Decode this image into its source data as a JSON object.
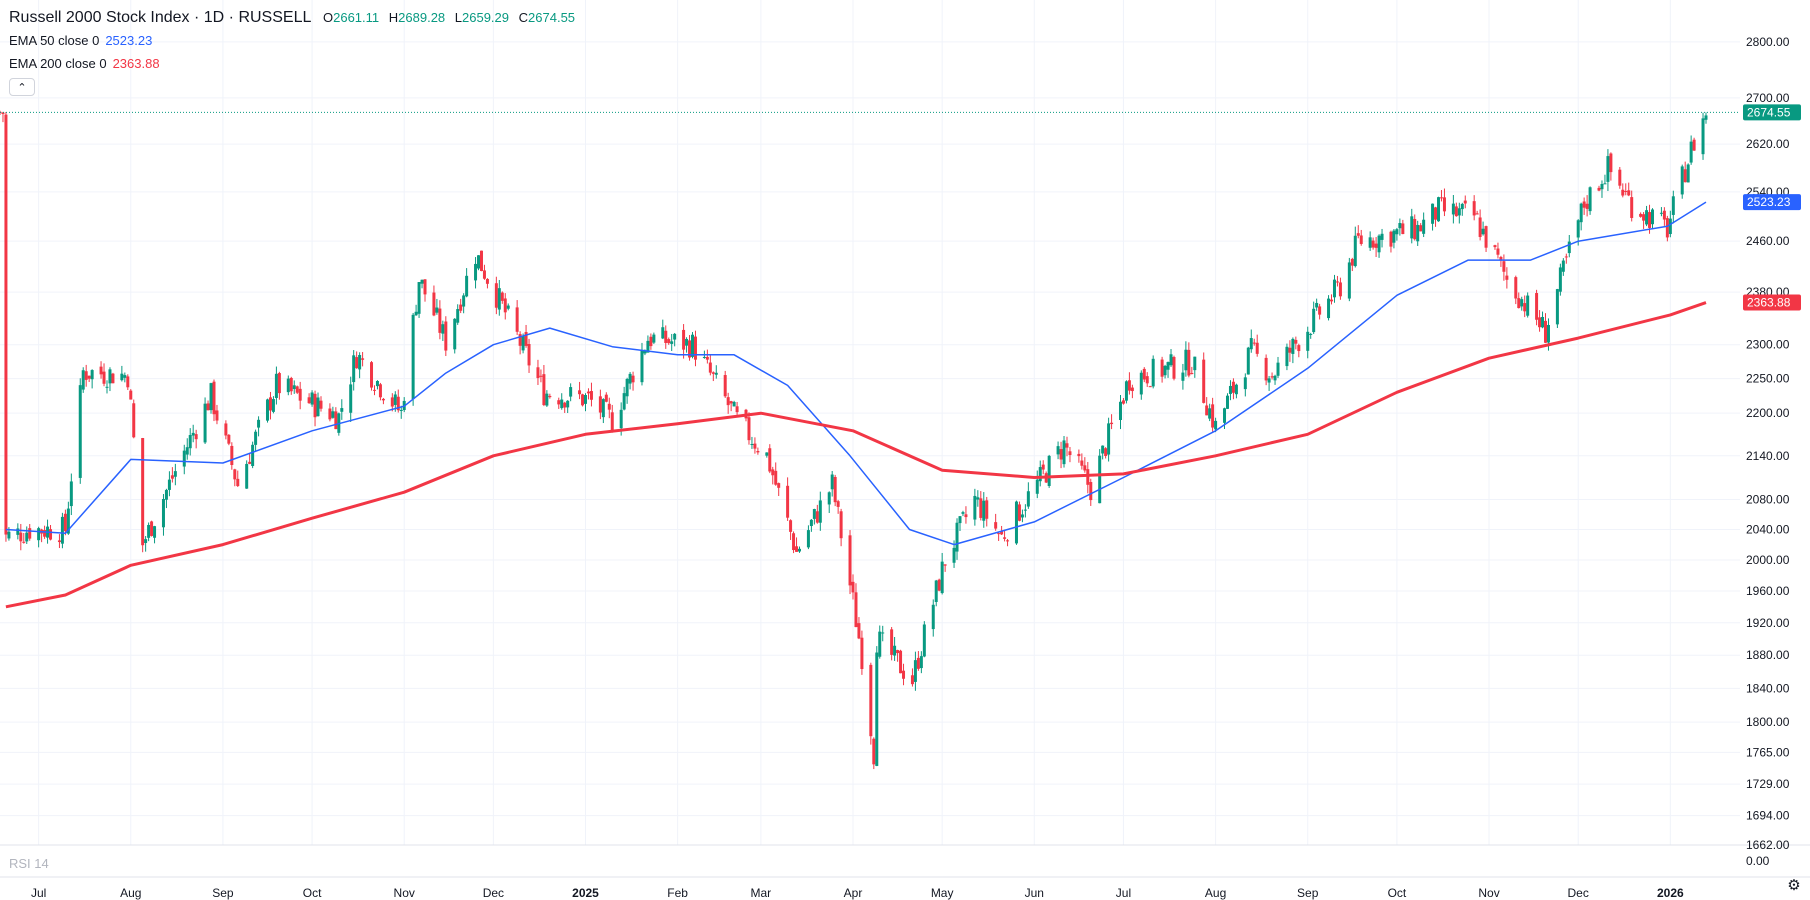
{
  "header": {
    "title": "Russell 2000 Stock Index · 1D · RUSSELL",
    "ohlc": [
      {
        "key": "O",
        "value": "2661.11"
      },
      {
        "key": "H",
        "value": "2689.28"
      },
      {
        "key": "L",
        "value": "2659.29"
      },
      {
        "key": "C",
        "value": "2674.55"
      }
    ],
    "ema50": {
      "label": "EMA 50 close 0",
      "value": "2523.23"
    },
    "ema200": {
      "label": "EMA 200 close 0",
      "value": "2363.88"
    }
  },
  "rsi": {
    "label": "RSI 14",
    "axis_value": "0.00"
  },
  "colors": {
    "up": "#089981",
    "down": "#f23645",
    "ema50": "#2962ff",
    "ema200": "#f23645",
    "grid": "#f0f3fa",
    "axis_text": "#131722"
  },
  "icons": {
    "collapse": "chevron-up-icon",
    "settings": "gear-icon"
  },
  "chart_data": {
    "type": "candlestick",
    "title": "Russell 2000 Stock Index · 1D · RUSSELL",
    "y_scale": "log",
    "ylim": [
      1662,
      2840
    ],
    "grid": true,
    "y_ticks": [
      "2800.00",
      "2700.00",
      "2620.00",
      "2540.00",
      "2460.00",
      "2380.00",
      "2300.00",
      "2250.00",
      "2200.00",
      "2140.00",
      "2080.00",
      "2040.00",
      "2000.00",
      "1960.00",
      "1920.00",
      "1880.00",
      "1840.00",
      "1800.00",
      "1765.00",
      "1729.00",
      "1694.00",
      "1662.00"
    ],
    "x_ticks": [
      {
        "label": "Jul",
        "date": "2024-07-01"
      },
      {
        "label": "Aug",
        "date": "2024-08-01"
      },
      {
        "label": "Sep",
        "date": "2024-09-01"
      },
      {
        "label": "Oct",
        "date": "2024-10-01"
      },
      {
        "label": "Nov",
        "date": "2024-11-01"
      },
      {
        "label": "Dec",
        "date": "2024-12-01"
      },
      {
        "label": "2025",
        "date": "2025-01-01"
      },
      {
        "label": "Feb",
        "date": "2025-02-01"
      },
      {
        "label": "Mar",
        "date": "2025-03-01"
      },
      {
        "label": "Apr",
        "date": "2025-04-01"
      },
      {
        "label": "May",
        "date": "2025-05-01"
      },
      {
        "label": "Jun",
        "date": "2025-06-01"
      },
      {
        "label": "Jul",
        "date": "2025-07-01"
      },
      {
        "label": "Aug",
        "date": "2025-08-01"
      },
      {
        "label": "Sep",
        "date": "2025-09-01"
      },
      {
        "label": "Oct",
        "date": "2025-10-01"
      },
      {
        "label": "Nov",
        "date": "2025-11-01"
      },
      {
        "label": "Dec",
        "date": "2025-12-01"
      },
      {
        "label": "2026",
        "date": "2026-01-01"
      }
    ],
    "last_price": {
      "value": 2674.55,
      "label": "2674.55"
    },
    "close_series": [
      {
        "date": "2024-06-20",
        "close": 2030
      },
      {
        "date": "2024-06-28",
        "close": 2040
      },
      {
        "date": "2024-07-10",
        "close": 2040
      },
      {
        "date": "2024-07-16",
        "close": 2260
      },
      {
        "date": "2024-07-31",
        "close": 2255
      },
      {
        "date": "2024-08-05",
        "close": 2020
      },
      {
        "date": "2024-08-15",
        "close": 2110
      },
      {
        "date": "2024-08-28",
        "close": 2225
      },
      {
        "date": "2024-09-06",
        "close": 2100
      },
      {
        "date": "2024-09-19",
        "close": 2240
      },
      {
        "date": "2024-10-10",
        "close": 2195
      },
      {
        "date": "2024-10-16",
        "close": 2285
      },
      {
        "date": "2024-10-31",
        "close": 2200
      },
      {
        "date": "2024-11-06",
        "close": 2400
      },
      {
        "date": "2024-11-15",
        "close": 2305
      },
      {
        "date": "2024-11-25",
        "close": 2440
      },
      {
        "date": "2024-12-18",
        "close": 2230
      },
      {
        "date": "2025-01-02",
        "close": 2220
      },
      {
        "date": "2025-01-10",
        "close": 2190
      },
      {
        "date": "2025-01-22",
        "close": 2310
      },
      {
        "date": "2025-02-06",
        "close": 2300
      },
      {
        "date": "2025-02-21",
        "close": 2190
      },
      {
        "date": "2025-03-03",
        "close": 2140
      },
      {
        "date": "2025-03-13",
        "close": 2010
      },
      {
        "date": "2025-03-25",
        "close": 2100
      },
      {
        "date": "2025-04-04",
        "close": 1880
      },
      {
        "date": "2025-04-08",
        "close": 1765
      },
      {
        "date": "2025-04-09",
        "close": 1900
      },
      {
        "date": "2025-04-21",
        "close": 1850
      },
      {
        "date": "2025-05-02",
        "close": 2000
      },
      {
        "date": "2025-05-12",
        "close": 2080
      },
      {
        "date": "2025-05-21",
        "close": 2030
      },
      {
        "date": "2025-06-11",
        "close": 2155
      },
      {
        "date": "2025-06-20",
        "close": 2095
      },
      {
        "date": "2025-07-03",
        "close": 2250
      },
      {
        "date": "2025-07-24",
        "close": 2275
      },
      {
        "date": "2025-08-01",
        "close": 2180
      },
      {
        "date": "2025-08-13",
        "close": 2290
      },
      {
        "date": "2025-08-20",
        "close": 2255
      },
      {
        "date": "2025-09-12",
        "close": 2390
      },
      {
        "date": "2025-09-18",
        "close": 2460
      },
      {
        "date": "2025-10-08",
        "close": 2480
      },
      {
        "date": "2025-10-15",
        "close": 2510
      },
      {
        "date": "2025-10-27",
        "close": 2500
      },
      {
        "date": "2025-11-07",
        "close": 2400
      },
      {
        "date": "2025-11-20",
        "close": 2320
      },
      {
        "date": "2025-12-03",
        "close": 2520
      },
      {
        "date": "2025-12-11",
        "close": 2580
      },
      {
        "date": "2025-12-19",
        "close": 2520
      },
      {
        "date": "2025-12-31",
        "close": 2480
      },
      {
        "date": "2026-01-08",
        "close": 2610
      },
      {
        "date": "2026-01-13",
        "close": 2674.55
      }
    ],
    "series": [
      {
        "name": "EMA 50 close 0",
        "color": "#2962ff",
        "last": 2523.23,
        "points": [
          {
            "date": "2024-06-20",
            "value": 2040
          },
          {
            "date": "2024-07-10",
            "value": 2035
          },
          {
            "date": "2024-08-01",
            "value": 2135
          },
          {
            "date": "2024-09-01",
            "value": 2130
          },
          {
            "date": "2024-10-01",
            "value": 2175
          },
          {
            "date": "2024-11-01",
            "value": 2210
          },
          {
            "date": "2024-11-15",
            "value": 2258
          },
          {
            "date": "2024-12-01",
            "value": 2300
          },
          {
            "date": "2024-12-20",
            "value": 2325
          },
          {
            "date": "2025-01-10",
            "value": 2297
          },
          {
            "date": "2025-02-01",
            "value": 2285
          },
          {
            "date": "2025-02-20",
            "value": 2285
          },
          {
            "date": "2025-03-10",
            "value": 2240
          },
          {
            "date": "2025-03-31",
            "value": 2140
          },
          {
            "date": "2025-04-20",
            "value": 2040
          },
          {
            "date": "2025-05-05",
            "value": 2020
          },
          {
            "date": "2025-06-01",
            "value": 2050
          },
          {
            "date": "2025-07-01",
            "value": 2110
          },
          {
            "date": "2025-08-01",
            "value": 2175
          },
          {
            "date": "2025-09-01",
            "value": 2265
          },
          {
            "date": "2025-10-01",
            "value": 2375
          },
          {
            "date": "2025-10-25",
            "value": 2430
          },
          {
            "date": "2025-11-15",
            "value": 2430
          },
          {
            "date": "2025-12-01",
            "value": 2460
          },
          {
            "date": "2025-12-31",
            "value": 2484
          },
          {
            "date": "2026-01-13",
            "value": 2523.23
          }
        ]
      },
      {
        "name": "EMA 200 close 0",
        "color": "#f23645",
        "last": 2363.88,
        "points": [
          {
            "date": "2024-06-20",
            "value": 1940
          },
          {
            "date": "2024-07-10",
            "value": 1955
          },
          {
            "date": "2024-08-01",
            "value": 1993
          },
          {
            "date": "2024-09-01",
            "value": 2020
          },
          {
            "date": "2024-10-01",
            "value": 2055
          },
          {
            "date": "2024-11-01",
            "value": 2090
          },
          {
            "date": "2024-12-01",
            "value": 2140
          },
          {
            "date": "2025-01-01",
            "value": 2170
          },
          {
            "date": "2025-02-01",
            "value": 2185
          },
          {
            "date": "2025-03-01",
            "value": 2200
          },
          {
            "date": "2025-04-01",
            "value": 2175
          },
          {
            "date": "2025-05-01",
            "value": 2120
          },
          {
            "date": "2025-06-01",
            "value": 2110
          },
          {
            "date": "2025-07-01",
            "value": 2115
          },
          {
            "date": "2025-08-01",
            "value": 2140
          },
          {
            "date": "2025-09-01",
            "value": 2170
          },
          {
            "date": "2025-10-01",
            "value": 2230
          },
          {
            "date": "2025-11-01",
            "value": 2280
          },
          {
            "date": "2025-12-01",
            "value": 2310
          },
          {
            "date": "2026-01-01",
            "value": 2345
          },
          {
            "date": "2026-01-13",
            "value": 2363.88
          }
        ]
      }
    ]
  }
}
